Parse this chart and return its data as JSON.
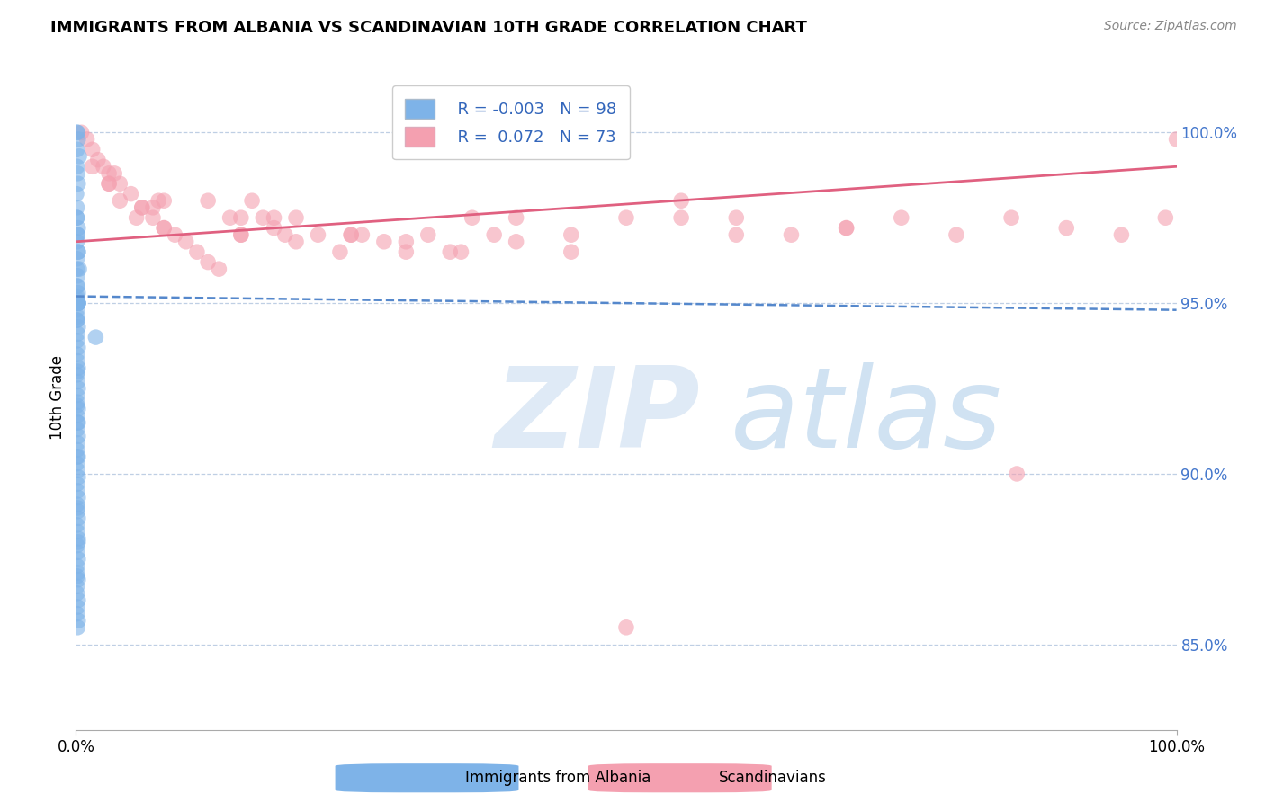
{
  "title": "IMMIGRANTS FROM ALBANIA VS SCANDINAVIAN 10TH GRADE CORRELATION CHART",
  "source": "Source: ZipAtlas.com",
  "ylabel": "10th Grade",
  "yticks": [
    85.0,
    90.0,
    95.0,
    100.0
  ],
  "ytick_labels": [
    "85.0%",
    "90.0%",
    "95.0%",
    "100.0%"
  ],
  "xlim": [
    0.0,
    100.0
  ],
  "ylim": [
    82.5,
    102.0
  ],
  "albania_color": "#7eb3e8",
  "scandinavian_color": "#f4a0b0",
  "albania_line_color": "#5588cc",
  "scandinavian_line_color": "#e06080",
  "albania_trend": [
    95.2,
    94.8
  ],
  "scandinavian_trend": [
    96.8,
    99.0
  ],
  "legend_r_albania": "-0.003",
  "legend_n_albania": "98",
  "legend_r_scand": "0.072",
  "legend_n_scand": "73",
  "albania_x": [
    0.1,
    0.15,
    0.2,
    0.1,
    0.3,
    0.1,
    0.15,
    0.2,
    0.05,
    0.1,
    0.1,
    0.2,
    0.15,
    0.1,
    0.2,
    0.1,
    0.3,
    0.15,
    0.1,
    0.2,
    0.1,
    0.15,
    0.1,
    0.2,
    0.1,
    0.15,
    0.2,
    0.1,
    0.1,
    0.15,
    0.2,
    0.1,
    0.1,
    0.15,
    0.2,
    0.1,
    0.15,
    0.1,
    0.2,
    0.15,
    0.1,
    0.2,
    0.1,
    0.15,
    0.2,
    0.1,
    0.15,
    0.2,
    0.1,
    0.15,
    0.2,
    0.1,
    0.15,
    0.1,
    0.2,
    0.15,
    0.1,
    0.2,
    0.1,
    0.15,
    0.2,
    0.1,
    0.15,
    0.2,
    0.1,
    0.15,
    0.2,
    0.1,
    0.15,
    0.2,
    0.1,
    0.15,
    0.2,
    0.1,
    0.15,
    0.2,
    0.1,
    0.1,
    0.2,
    0.15,
    0.1,
    0.2,
    0.15,
    0.1,
    0.2,
    0.15,
    0.1,
    0.2,
    0.1,
    0.15,
    1.8,
    0.1,
    0.2,
    0.15,
    0.1,
    0.2,
    0.15,
    0.1
  ],
  "albania_y": [
    100.0,
    100.0,
    99.8,
    99.5,
    99.3,
    99.0,
    98.8,
    98.5,
    98.2,
    97.8,
    97.5,
    97.2,
    97.0,
    96.8,
    96.5,
    96.3,
    96.0,
    95.8,
    95.5,
    95.3,
    95.2,
    95.1,
    95.0,
    95.0,
    95.0,
    95.0,
    95.0,
    95.0,
    95.0,
    95.0,
    95.0,
    95.0,
    95.0,
    95.0,
    95.0,
    94.8,
    94.6,
    94.5,
    94.3,
    94.1,
    93.9,
    93.7,
    93.5,
    93.3,
    93.1,
    92.9,
    92.7,
    92.5,
    92.3,
    92.1,
    91.9,
    91.7,
    91.5,
    91.3,
    91.1,
    90.9,
    90.7,
    90.5,
    90.3,
    90.1,
    89.9,
    89.7,
    89.5,
    89.3,
    89.1,
    88.9,
    88.7,
    88.5,
    88.3,
    88.1,
    87.9,
    87.7,
    87.5,
    87.3,
    87.1,
    86.9,
    86.7,
    86.5,
    86.3,
    86.1,
    85.9,
    85.7,
    85.5,
    87.0,
    88.0,
    89.0,
    90.5,
    91.5,
    92.0,
    93.0,
    94.0,
    94.5,
    95.0,
    95.5,
    96.0,
    96.5,
    97.0,
    97.5
  ],
  "scandinavian_x": [
    0.5,
    1.0,
    1.5,
    2.0,
    2.5,
    3.0,
    4.0,
    5.0,
    6.0,
    7.0,
    8.0,
    9.0,
    10.0,
    11.0,
    12.0,
    13.0,
    14.0,
    15.0,
    16.0,
    17.0,
    18.0,
    19.0,
    20.0,
    22.0,
    24.0,
    26.0,
    28.0,
    30.0,
    32.0,
    34.0,
    36.0,
    38.0,
    40.0,
    45.0,
    50.0,
    55.0,
    60.0,
    65.0,
    70.0,
    75.0,
    80.0,
    85.0,
    90.0,
    95.0,
    99.0,
    100.0,
    3.0,
    7.0,
    12.0,
    18.0,
    25.0,
    35.0,
    50.0,
    20.0,
    8.0,
    4.0,
    6.0,
    15.0,
    30.0,
    45.0,
    60.0,
    70.0,
    55.0,
    40.0,
    25.0,
    15.0,
    8.0,
    3.0,
    1.5,
    3.5,
    5.5,
    7.5,
    85.5
  ],
  "scandinavian_y": [
    100.0,
    99.8,
    99.5,
    99.2,
    99.0,
    98.8,
    98.5,
    98.2,
    97.8,
    97.5,
    97.2,
    97.0,
    96.8,
    96.5,
    96.2,
    96.0,
    97.5,
    97.0,
    98.0,
    97.5,
    97.2,
    97.0,
    96.8,
    97.0,
    96.5,
    97.0,
    96.8,
    96.5,
    97.0,
    96.5,
    97.5,
    97.0,
    97.5,
    97.0,
    97.5,
    98.0,
    97.5,
    97.0,
    97.2,
    97.5,
    97.0,
    97.5,
    97.2,
    97.0,
    97.5,
    99.8,
    98.5,
    97.8,
    98.0,
    97.5,
    97.0,
    96.5,
    85.5,
    97.5,
    97.2,
    98.0,
    97.8,
    97.0,
    96.8,
    96.5,
    97.0,
    97.2,
    97.5,
    96.8,
    97.0,
    97.5,
    98.0,
    98.5,
    99.0,
    98.8,
    97.5,
    98.0,
    90.0
  ]
}
